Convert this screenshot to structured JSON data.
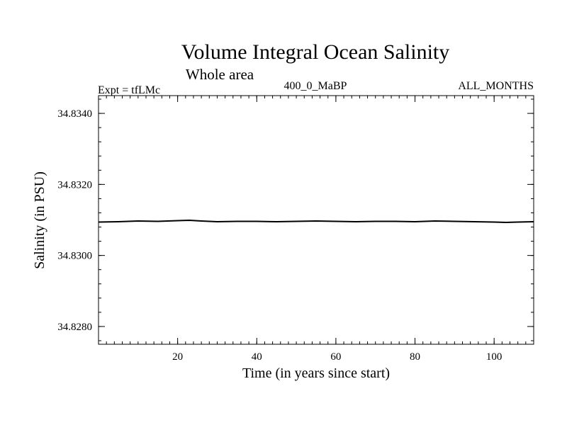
{
  "chart_data": {
    "type": "line",
    "title": "Volume Integral Ocean Salinity",
    "subtitle": "Whole area",
    "header_left": "Expt = tfLMc",
    "header_center": "400_0_MaBP",
    "header_right": "ALL_MONTHS",
    "xlabel": "Time (in years since start)",
    "ylabel": "Salinity (in PSU)",
    "xlim": [
      0,
      110
    ],
    "ylim": [
      34.8275,
      34.8345
    ],
    "x_major_ticks": [
      20,
      40,
      60,
      80,
      100
    ],
    "x_tick_labels": [
      "20",
      "40",
      "60",
      "80",
      "100"
    ],
    "x_minor_step": 2,
    "y_major_ticks": [
      34.828,
      34.83,
      34.832,
      34.834
    ],
    "y_tick_labels": [
      "34.8280",
      "34.8300",
      "34.8320",
      "34.8340"
    ],
    "y_minor_step": 0.0004,
    "grid": false,
    "series": [
      {
        "name": "salinity",
        "color": "#000000",
        "x": [
          0,
          5,
          10,
          15,
          20,
          23,
          26,
          30,
          35,
          40,
          45,
          50,
          55,
          60,
          65,
          70,
          75,
          80,
          85,
          90,
          95,
          100,
          103,
          106,
          110
        ],
        "y": [
          34.83094,
          34.83095,
          34.83097,
          34.83096,
          34.83098,
          34.83099,
          34.83097,
          34.83095,
          34.83096,
          34.83096,
          34.83095,
          34.83096,
          34.83097,
          34.83096,
          34.83095,
          34.83096,
          34.83096,
          34.83095,
          34.83097,
          34.83096,
          34.83095,
          34.83094,
          34.83093,
          34.83094,
          34.83095
        ]
      }
    ]
  }
}
